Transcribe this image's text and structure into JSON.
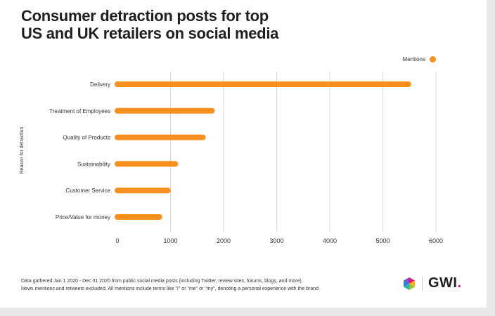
{
  "title_lines": [
    "Consumer detraction posts for top",
    "US and UK retailers on social media"
  ],
  "legend": {
    "label": "Mentions",
    "color": "#f7901e"
  },
  "footer_lines": [
    "Data gathered Jan 1 2020 - Dec 31 2020 from public social media posts (including Twitter, review sites, forums, blogs, and more).",
    "News mentions and retweets excluded. All mentions include terms like \"I\" or \"me\" or \"my\", denoting a personal experience with the brand"
  ],
  "brand": {
    "name": "GWI",
    "dot": "."
  },
  "chart_data": {
    "type": "bar",
    "orientation": "horizontal",
    "title": "Consumer detraction posts for top US and UK retailers on social media",
    "ylabel": "Reason for detraction",
    "xlabel": "",
    "series": [
      {
        "name": "Mentions",
        "color": "#f7901e",
        "values": [
          5480,
          1780,
          1610,
          1090,
          950,
          790
        ]
      }
    ],
    "categories": [
      "Delivery",
      "Treatment of Employees",
      "Quality of Products",
      "Sustainability",
      "Customer Service",
      "Price/Value for money"
    ],
    "xlim": [
      0,
      6000
    ],
    "xticks": [
      0,
      1000,
      2000,
      3000,
      4000,
      5000,
      6000
    ],
    "grid": true,
    "legend_position": "top-right"
  }
}
